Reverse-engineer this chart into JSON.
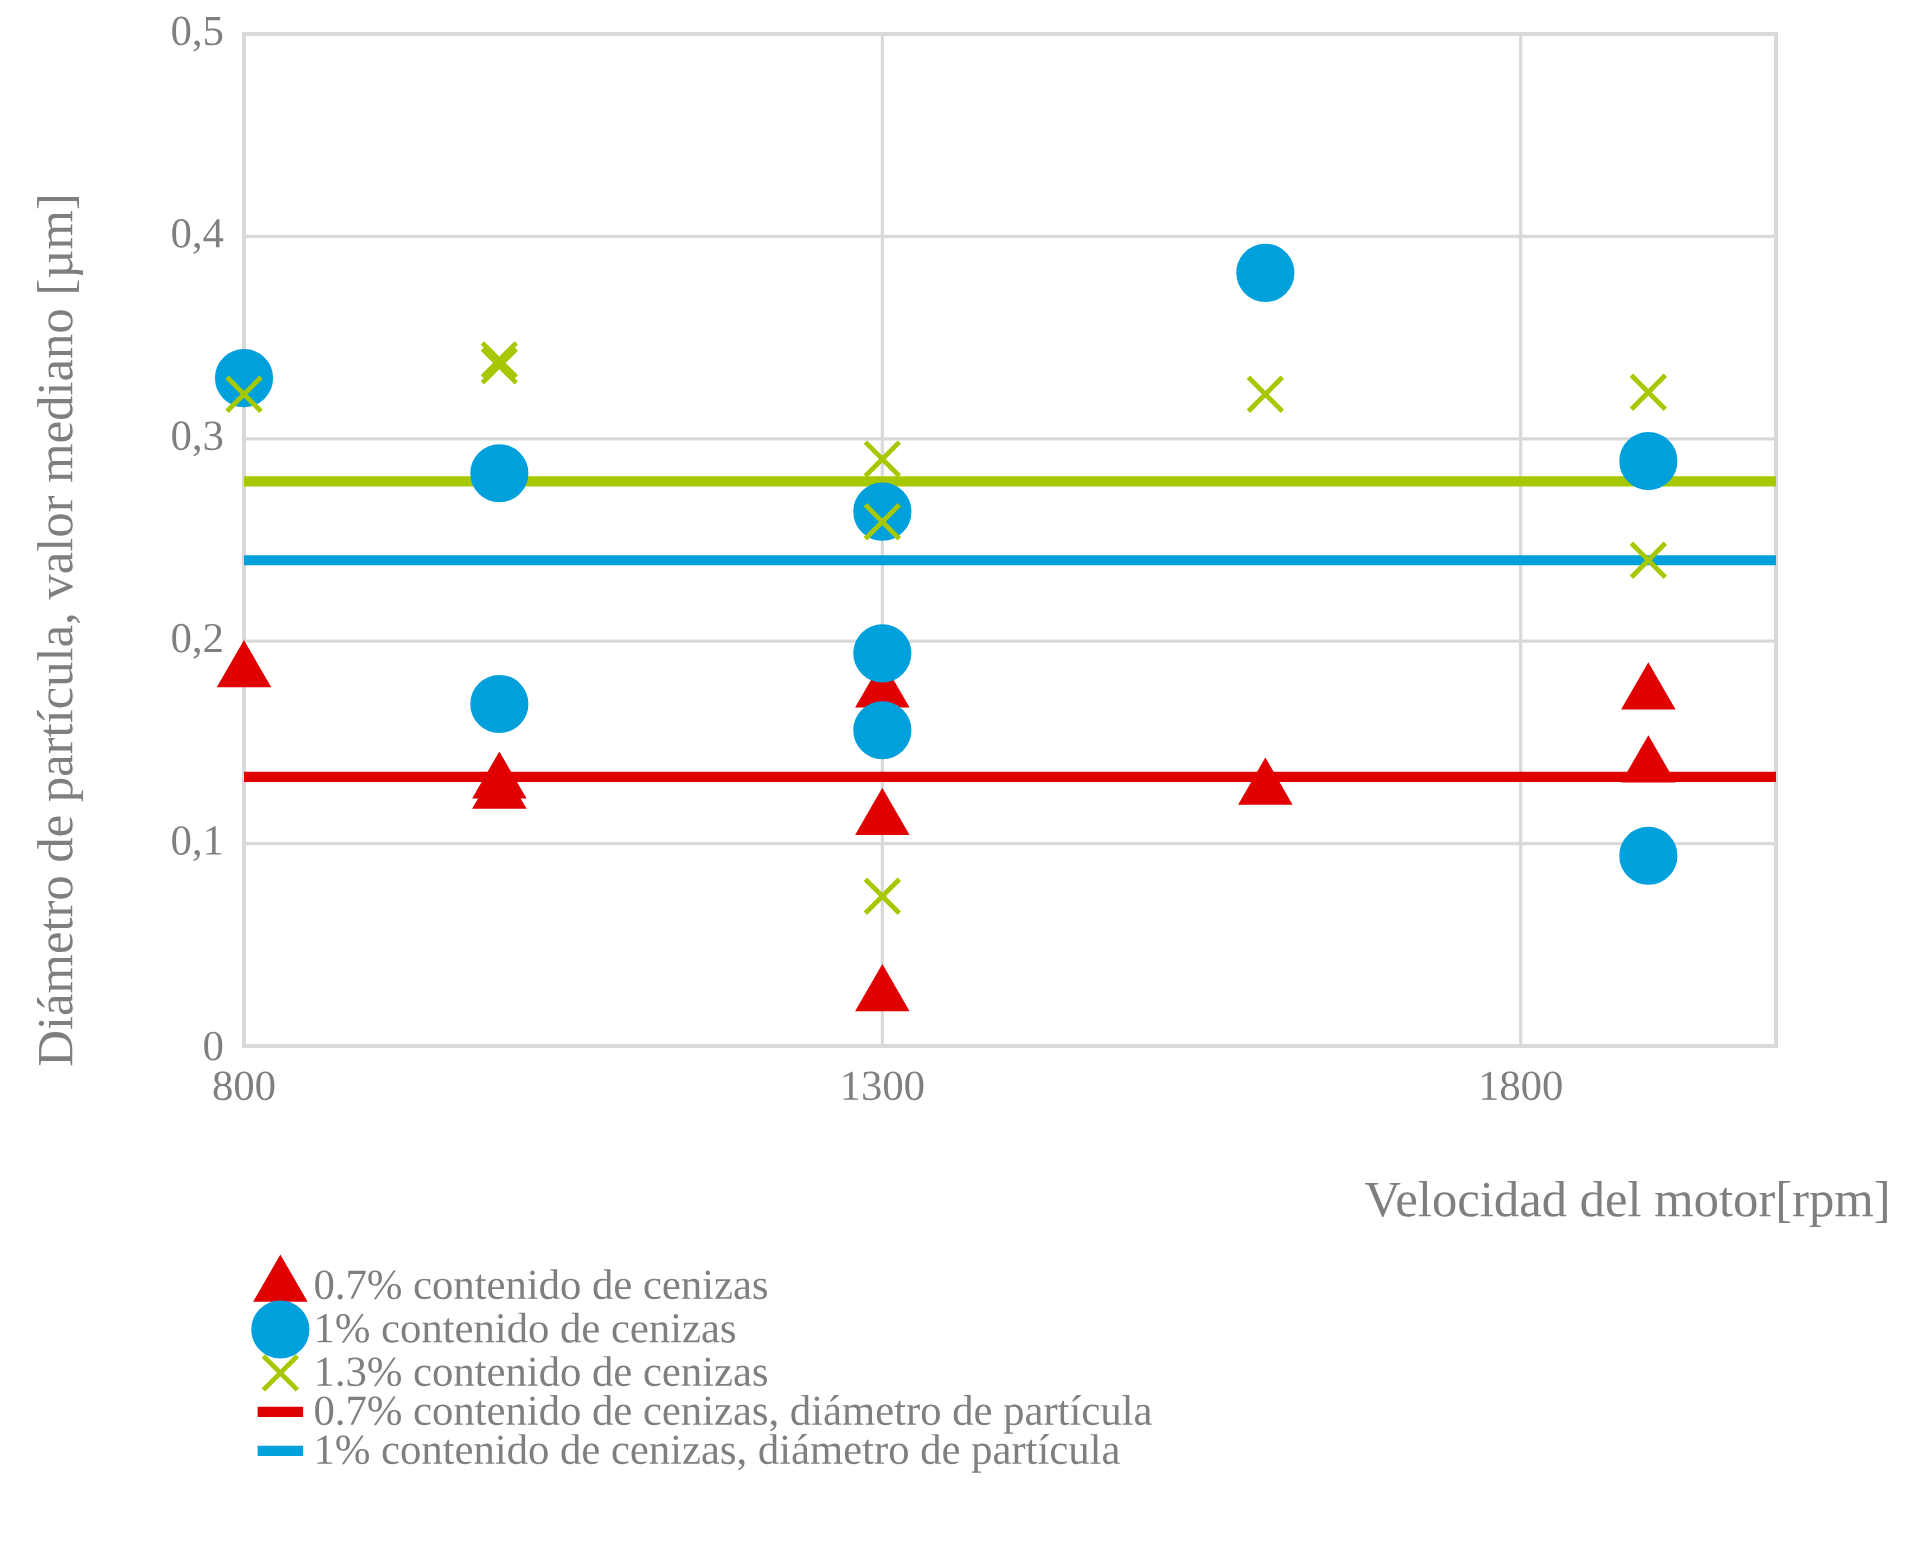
{
  "chart_data": {
    "type": "scatter",
    "xlabel": "Velocidad del motor[rpm]",
    "ylabel": "Diámetro de partícula, valor mediano [µm]",
    "xlim": [
      800,
      2000
    ],
    "xticks": [
      800,
      1300,
      1800
    ],
    "ylim": [
      0,
      0.5
    ],
    "yticks": [
      0,
      {
        "value": 0.1,
        "label": "0,1"
      },
      {
        "value": 0.2,
        "label": "0,2"
      },
      {
        "value": 0.3,
        "label": "0,3"
      },
      {
        "value": 0.4,
        "label": "0,4"
      },
      {
        "value": 0.5,
        "label": "0,5"
      }
    ],
    "grid": true,
    "legend": "bottom",
    "series": [
      {
        "name": "0.7% contenido de cenizas",
        "marker": "triangle",
        "color": "#e00000",
        "x": [
          800,
          1000,
          1000,
          1300,
          1300,
          1300,
          1600,
          1900,
          1900
        ],
        "values": [
          0.185,
          0.13,
          0.125,
          0.175,
          0.112,
          0.025,
          0.127,
          0.174,
          0.138
        ]
      },
      {
        "name": "1% contenido de cenizas",
        "marker": "circle",
        "color": "#00a0dc",
        "x": [
          800,
          1000,
          1000,
          1300,
          1300,
          1300,
          1600,
          1900,
          1900
        ],
        "values": [
          0.33,
          0.283,
          0.169,
          0.264,
          0.194,
          0.156,
          0.382,
          0.289,
          0.094
        ]
      },
      {
        "name": "1.3% contenido de cenizas",
        "marker": "cross",
        "color": "#a5c800",
        "x": [
          800,
          1000,
          1000,
          1300,
          1300,
          1300,
          1600,
          1900,
          1900
        ],
        "values": [
          0.322,
          0.339,
          0.336,
          0.29,
          0.259,
          0.074,
          0.322,
          0.323,
          0.24
        ]
      },
      {
        "name": "0.7% contenido de cenizas, diámetro de partícula",
        "type": "line",
        "color": "#e00000",
        "x": [
          800,
          2000
        ],
        "values": [
          0.133,
          0.133
        ]
      },
      {
        "name": "1% contenido de cenizas, diámetro de partícula",
        "type": "line",
        "color": "#00a0dc",
        "x": [
          800,
          2000
        ],
        "values": [
          0.24,
          0.24
        ]
      },
      {
        "type": "line",
        "color": "#a5c800",
        "x": [
          800,
          2000
        ],
        "values": [
          0.279,
          0.279
        ]
      }
    ]
  }
}
